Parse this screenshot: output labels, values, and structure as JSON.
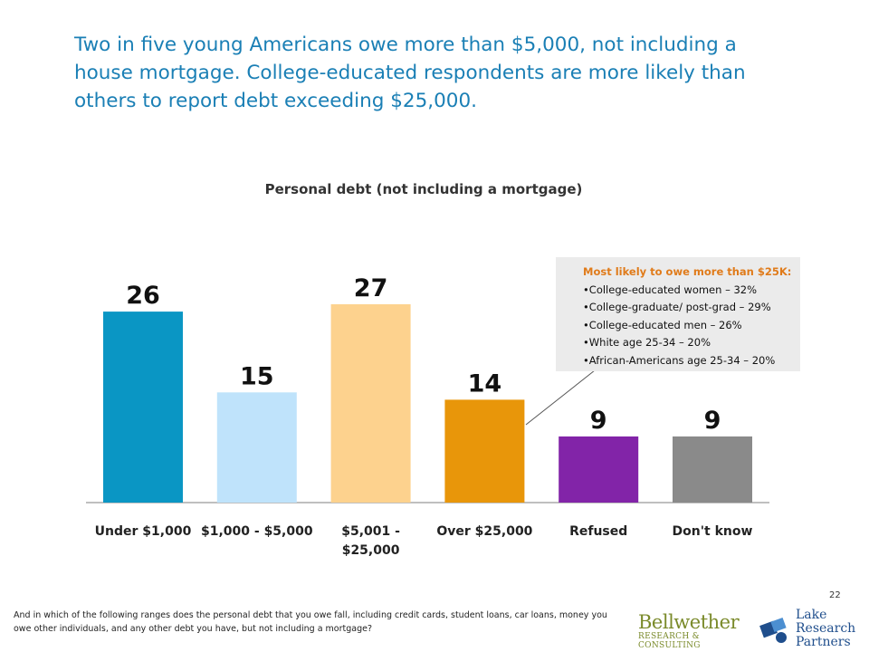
{
  "headline": "Two in five young Americans owe more than $5,000, not including a house mortgage. College-educated respondents are more likely than others to report debt exceeding $25,000.",
  "colors": {
    "headline": "#1a7fb5",
    "callout_head": "#e07b1a",
    "bars": [
      "#0a96c4",
      "#bfe3fb",
      "#fdd28e",
      "#e8960a",
      "#8224a8",
      "#8a8a8a"
    ]
  },
  "chart_data": {
    "type": "bar",
    "title": "Personal debt (not including a mortgage)",
    "categories": [
      [
        "Under $1,000"
      ],
      [
        "$1,000 - $5,000"
      ],
      [
        "$5,001 -",
        "$25,000"
      ],
      [
        "Over $25,000"
      ],
      [
        "Refused"
      ],
      [
        "Don't know"
      ]
    ],
    "values": [
      26,
      15,
      27,
      14,
      9,
      9
    ],
    "data_labels": [
      "26",
      "15",
      "27",
      "14",
      "9",
      "9"
    ],
    "ylim": [
      0,
      27
    ],
    "grid": false,
    "legend": "none"
  },
  "callout": {
    "heading": "Most likely to owe more than $25K:",
    "items": [
      "•College-educated women – 32%",
      "•College-graduate/ post-grad – 29%",
      "•College-educated men – 26%",
      "•White age 25-34 – 20%",
      "•African-Americans age 25-34 – 20%"
    ]
  },
  "footnote": "And in which of the following ranges does the personal debt that you owe fall, including credit cards, student loans, car loans, money you owe other individuals, and any other debt you have, but not including a mortgage?",
  "page_number": "22",
  "logos": {
    "bellwether_line1": "Bellwether",
    "bellwether_line2": "RESEARCH & CONSULTING",
    "lake_line1": "Lake",
    "lake_line2": "Research",
    "lake_line3": "Partners"
  }
}
